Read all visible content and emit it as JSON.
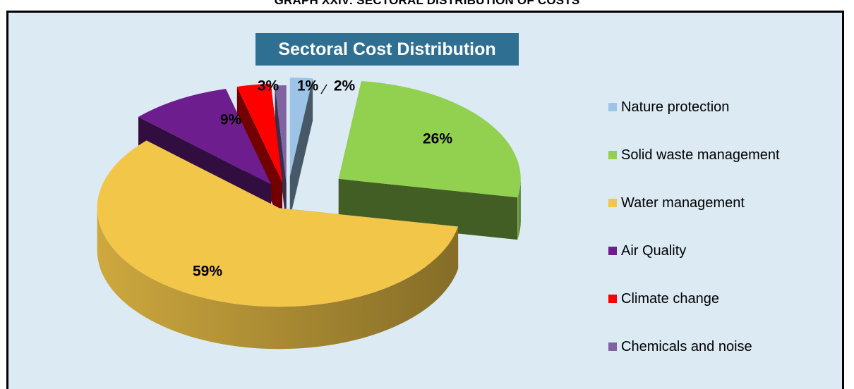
{
  "page": {
    "heading": "GRAPH XXIV: SECTORAL DISTRIBUTION OF COSTS"
  },
  "chart_data": {
    "type": "pie",
    "title": "Sectoral Cost Distribution",
    "categories": [
      "Nature protection",
      "Solid waste management",
      "Water management",
      "Air Quality",
      "Climate change",
      "Chemicals and noise"
    ],
    "values": [
      2,
      26,
      59,
      9,
      3,
      1
    ],
    "labels": [
      "2%",
      "26%",
      "59%",
      "9%",
      "3%",
      "1%"
    ],
    "colors": [
      "#9dc3e6",
      "#92d050",
      "#f2c649",
      "#6e1d8e",
      "#ff0000",
      "#8064a2"
    ],
    "exploded": true,
    "three_d": true,
    "legend_position": "right"
  }
}
